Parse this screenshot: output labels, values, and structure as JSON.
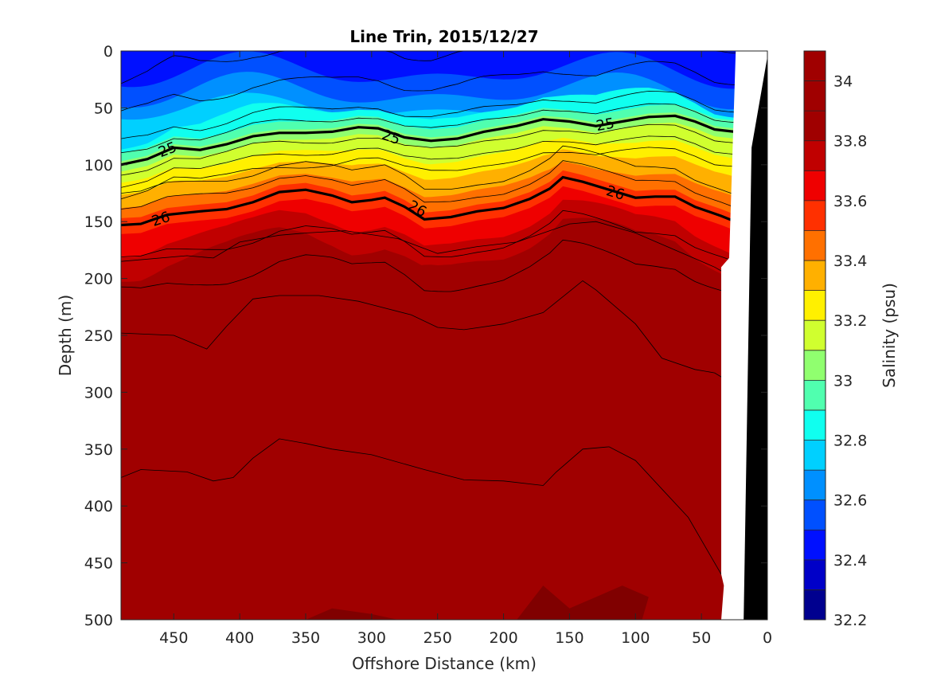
{
  "chart_data": {
    "type": "contour",
    "title": "Line Trin, 2015/12/27",
    "xlabel": "Offshore Distance (km)",
    "ylabel": "Depth (m)",
    "colorbar_label": "Salinity (psu)",
    "xlim": [
      490,
      0
    ],
    "ylim": [
      0,
      500
    ],
    "x_ticks": [
      450,
      400,
      350,
      300,
      250,
      200,
      150,
      100,
      50,
      0
    ],
    "y_ticks": [
      0,
      50,
      100,
      150,
      200,
      250,
      300,
      350,
      400,
      450,
      500
    ],
    "colorbar_levels": [
      32.2,
      32.3,
      32.4,
      32.5,
      32.6,
      32.7,
      32.8,
      32.9,
      33.0,
      33.1,
      33.2,
      33.3,
      33.4,
      33.5,
      33.6,
      33.7,
      33.8,
      33.9,
      34.0,
      34.1
    ],
    "colorbar_ticks": [
      "32.2",
      "32.4",
      "32.6",
      "32.8",
      "33",
      "33.2",
      "33.4",
      "33.6",
      "33.8",
      "34"
    ],
    "colorbar_colors": [
      "#00008f",
      "#0000c8",
      "#0010ff",
      "#0050ff",
      "#0090ff",
      "#00d0ff",
      "#10ffef",
      "#50ffaf",
      "#90ff6f",
      "#d0ff2f",
      "#fff000",
      "#ffb000",
      "#ff7000",
      "#ff3000",
      "#ef0000",
      "#c00000",
      "#a00000"
    ],
    "isopycnals": [
      {
        "label": "25",
        "label_positions": [
          [
            455,
            86
          ],
          [
            285,
            75
          ],
          [
            123,
            64
          ]
        ],
        "points": [
          [
            490,
            100
          ],
          [
            470,
            95
          ],
          [
            450,
            85
          ],
          [
            430,
            87
          ],
          [
            410,
            82
          ],
          [
            390,
            75
          ],
          [
            370,
            72
          ],
          [
            350,
            72
          ],
          [
            330,
            71
          ],
          [
            310,
            67
          ],
          [
            295,
            68
          ],
          [
            275,
            76
          ],
          [
            255,
            79
          ],
          [
            235,
            77
          ],
          [
            215,
            71
          ],
          [
            190,
            66
          ],
          [
            170,
            60
          ],
          [
            150,
            62
          ],
          [
            130,
            66
          ],
          [
            110,
            62
          ],
          [
            90,
            58
          ],
          [
            70,
            57
          ],
          [
            55,
            62
          ],
          [
            40,
            69
          ],
          [
            25,
            71
          ],
          [
            20,
            70
          ]
        ]
      },
      {
        "label": "26",
        "label_positions": [
          [
            460,
            147
          ],
          [
            265,
            138
          ],
          [
            115,
            124
          ]
        ],
        "points": [
          [
            490,
            153
          ],
          [
            475,
            152
          ],
          [
            455,
            144
          ],
          [
            430,
            141
          ],
          [
            410,
            139
          ],
          [
            390,
            133
          ],
          [
            370,
            124
          ],
          [
            350,
            122
          ],
          [
            330,
            127
          ],
          [
            315,
            133
          ],
          [
            300,
            131
          ],
          [
            290,
            129
          ],
          [
            275,
            137
          ],
          [
            260,
            148
          ],
          [
            240,
            146
          ],
          [
            220,
            141
          ],
          [
            200,
            138
          ],
          [
            180,
            130
          ],
          [
            165,
            121
          ],
          [
            155,
            111
          ],
          [
            140,
            115
          ],
          [
            120,
            122
          ],
          [
            100,
            129
          ],
          [
            85,
            128
          ],
          [
            70,
            128
          ],
          [
            55,
            137
          ],
          [
            35,
            145
          ],
          [
            20,
            152
          ]
        ]
      }
    ]
  }
}
